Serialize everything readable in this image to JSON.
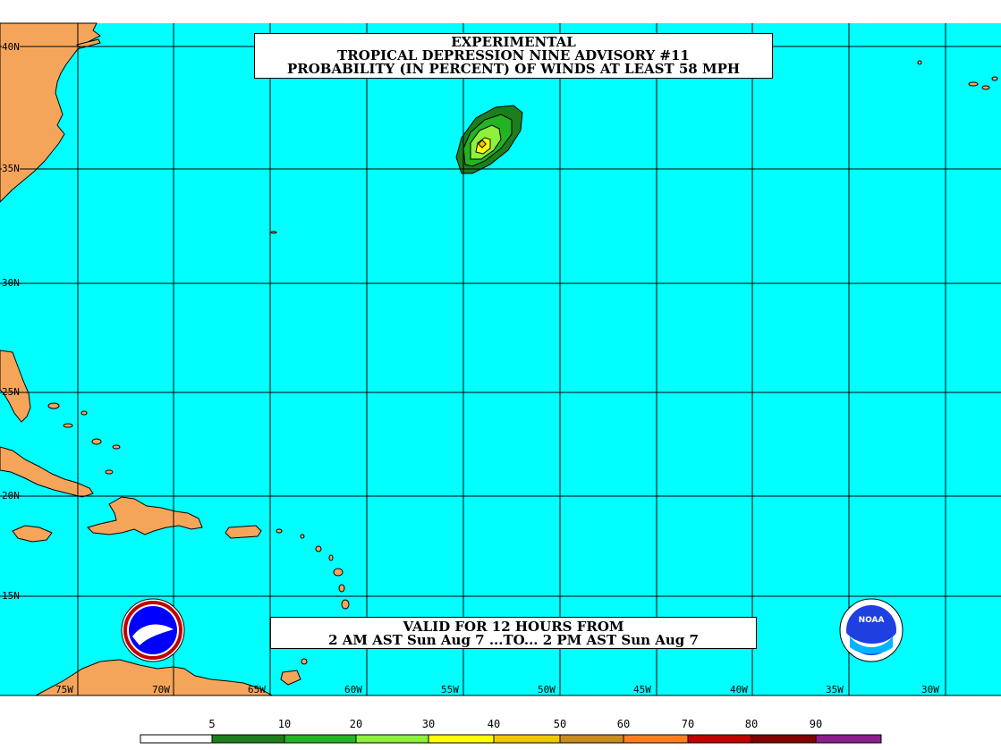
{
  "title": {
    "line1": "EXPERIMENTAL",
    "line2": "TROPICAL DEPRESSION NINE ADVISORY #11",
    "line3": "PROBABILITY (IN PERCENT) OF WINDS AT LEAST 58 MPH"
  },
  "valid": {
    "line1": "VALID FOR 12 HOURS FROM",
    "line2": "2 AM AST Sun Aug 7 ...TO... 2 PM AST Sun Aug 7"
  },
  "latitude_labels": [
    "40N",
    "35N",
    "30N",
    "25N",
    "20N",
    "15N"
  ],
  "longitude_labels": [
    "75W",
    "70W",
    "65W",
    "60W",
    "55W",
    "50W",
    "45W",
    "40W",
    "35W",
    "30W"
  ],
  "legend": {
    "thresholds": [
      "5",
      "10",
      "20",
      "30",
      "40",
      "50",
      "60",
      "70",
      "80",
      "90"
    ],
    "colors": [
      "#ffffff",
      "#1e7e1e",
      "#22b422",
      "#8cf03c",
      "#ffff00",
      "#f0c800",
      "#c88c1e",
      "#ff7f1e",
      "#c00000",
      "#800000",
      "#8c1e8c"
    ]
  },
  "colors": {
    "ocean": "#00ffff",
    "land": "#f5a55a",
    "grid": "#000000"
  },
  "logos": {
    "left": "national-weather-service-logo",
    "right": "noaa-logo"
  }
}
